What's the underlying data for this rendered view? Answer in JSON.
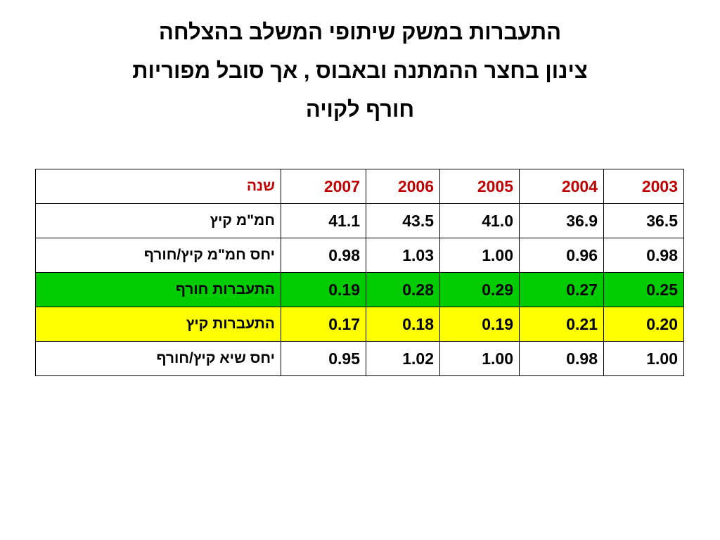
{
  "title": {
    "lines": [
      "התעברות במשק שיתופי המשלב בהצלחה",
      "צינון בחצר ההמתנה ובאבוס , אך סובל מפוריות",
      "חורף לקויה"
    ]
  },
  "table": {
    "header": [
      "שנה",
      "2007",
      "2006",
      "2005",
      "2004",
      "2003"
    ],
    "rows": [
      [
        "חמ\"מ קיץ",
        "41.1",
        "43.5",
        "41.0",
        "36.9",
        "36.5"
      ],
      [
        "יחס חמ\"מ קיץ/חורף",
        "0.98",
        "1.03",
        "1.00",
        "0.96",
        "0.98"
      ],
      [
        "התעברות חורף",
        "0.19",
        "0.28",
        "0.29",
        "0.27",
        "0.25"
      ],
      [
        "התעברות קיץ",
        "0.17",
        "0.18",
        "0.19",
        "0.21",
        "0.20"
      ],
      [
        "יחס שיא קיץ/חורף",
        "0.95",
        "1.02",
        "1.00",
        "0.98",
        "1.00"
      ]
    ]
  }
}
